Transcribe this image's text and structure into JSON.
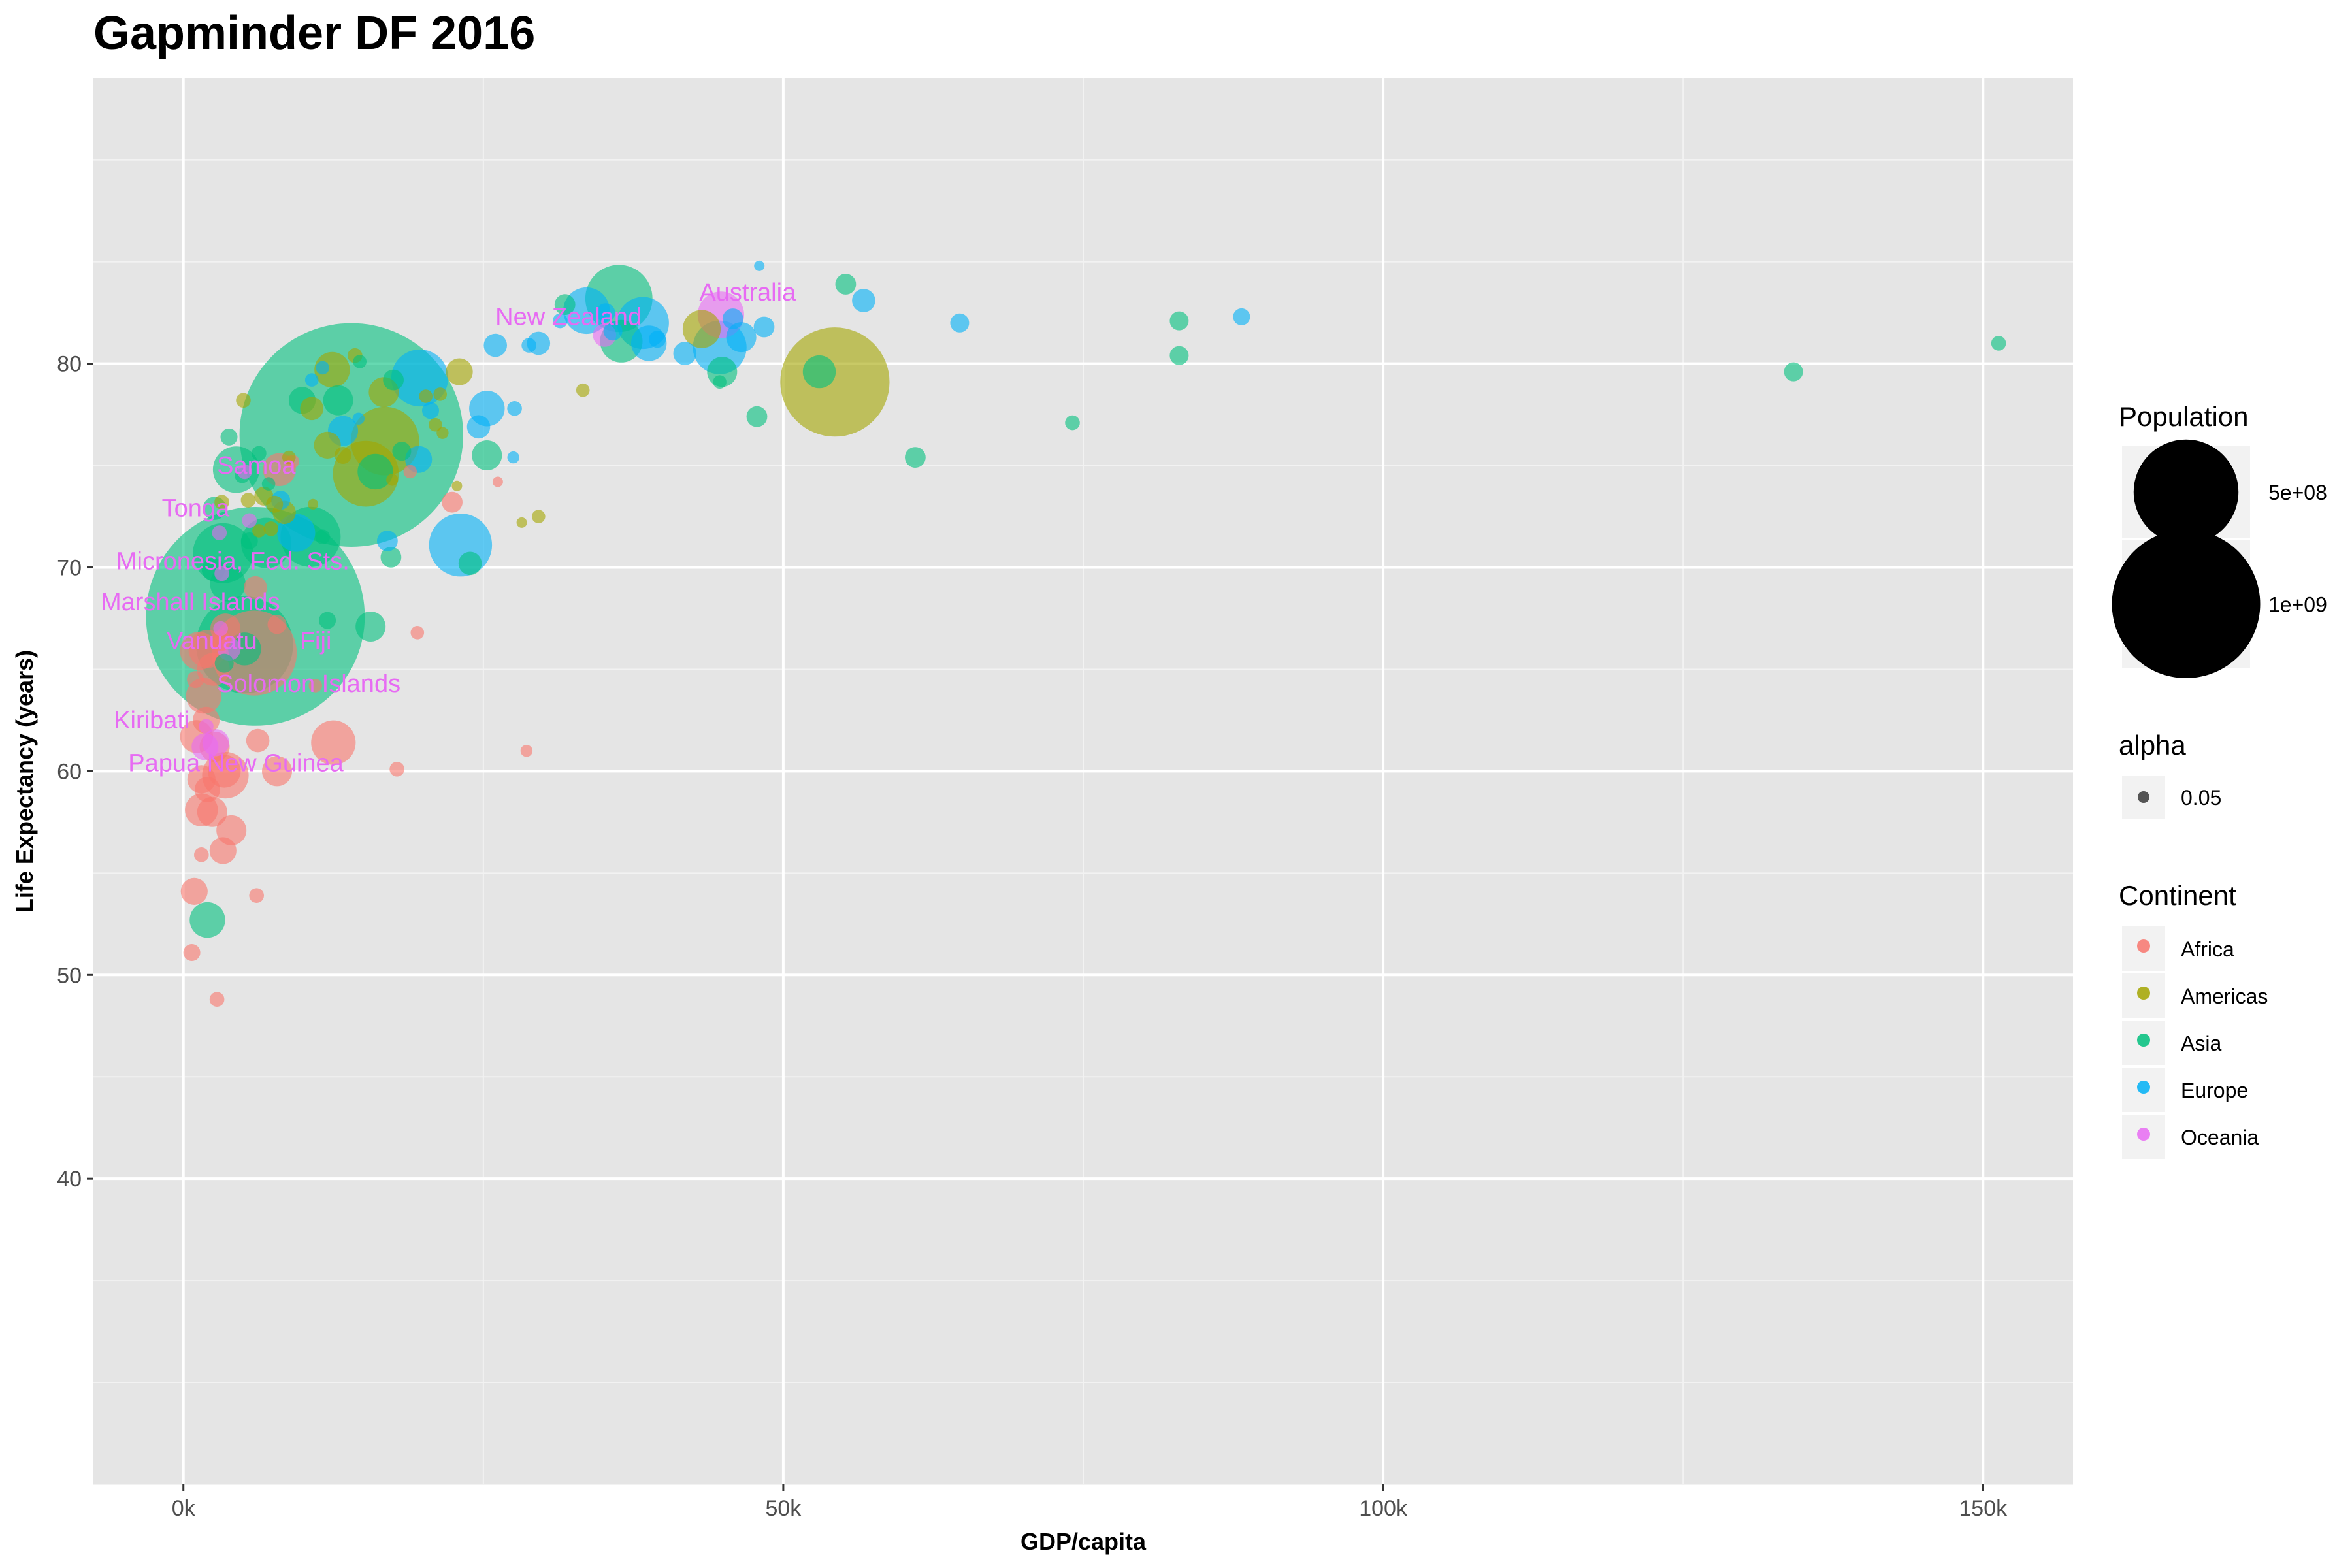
{
  "chart_data": {
    "type": "scatter",
    "title": "Gapminder DF 2016",
    "xlabel": "GDP/capita",
    "ylabel": "Life Expectancy (years)",
    "xlim": [
      -7500,
      157500
    ],
    "ylim": [
      25,
      94
    ],
    "x_ticks": [
      0,
      50000,
      100000,
      150000
    ],
    "x_tick_labels": [
      "0k",
      "50k",
      "100k",
      "150k"
    ],
    "y_ticks": [
      40,
      50,
      60,
      70,
      80
    ],
    "y_tick_labels": [
      "40",
      "50",
      "60",
      "70",
      "80"
    ],
    "grid": true,
    "background": "#e5e5e5",
    "point_alpha": 0.6,
    "colors": {
      "Africa": "#F8766D",
      "Americas": "#A3A500",
      "Asia": "#00BF7D",
      "Europe": "#00B0F6",
      "Oceania": "#E76BF3"
    },
    "legend": {
      "position": "right",
      "size": {
        "title": "Population",
        "entries": [
          {
            "label": "5e+08",
            "value": 500000000
          },
          {
            "label": "1e+09",
            "value": 1000000000
          }
        ]
      },
      "alpha": {
        "title": "alpha",
        "entries": [
          {
            "label": "0.05"
          }
        ]
      },
      "color": {
        "title": "Continent",
        "entries": [
          "Africa",
          "Americas",
          "Asia",
          "Europe",
          "Oceania"
        ]
      }
    },
    "series": [
      {
        "name": "Africa",
        "points": [
          [
            700,
            51.1,
            8
          ],
          [
            900,
            54.1,
            20
          ],
          [
            1300,
            65.9,
            40
          ],
          [
            1100,
            61.7,
            30
          ],
          [
            1500,
            58.1,
            30
          ],
          [
            2000,
            59.1,
            18
          ],
          [
            2400,
            58.0,
            25
          ],
          [
            3300,
            56.1,
            20
          ],
          [
            4000,
            57.1,
            25
          ],
          [
            1500,
            55.9,
            6
          ],
          [
            1900,
            62.5,
            20
          ],
          [
            2600,
            61.2,
            25
          ],
          [
            1700,
            63.7,
            35
          ],
          [
            3400,
            60.0,
            30
          ],
          [
            3500,
            59.8,
            60
          ],
          [
            1500,
            59.6,
            22
          ],
          [
            2800,
            48.8,
            6
          ],
          [
            6200,
            61.5,
            15
          ],
          [
            7800,
            60.0,
            25
          ],
          [
            12500,
            61.4,
            55
          ],
          [
            17800,
            60.1,
            6
          ],
          [
            28600,
            61.0,
            4
          ],
          [
            6100,
            53.9,
            6
          ],
          [
            19500,
            66.8,
            5
          ],
          [
            3500,
            67.0,
            25
          ],
          [
            6000,
            69.0,
            15
          ],
          [
            11000,
            64.2,
            5
          ],
          [
            2000,
            66.0,
            40
          ],
          [
            2500,
            65.0,
            30
          ],
          [
            1000,
            64.5,
            8
          ],
          [
            8000,
            74.8,
            30
          ],
          [
            22400,
            73.2,
            12
          ],
          [
            26200,
            74.2,
            3
          ],
          [
            18900,
            74.7,
            5
          ],
          [
            3100,
            66.4,
            12
          ],
          [
            9100,
            75.2,
            5
          ],
          [
            7800,
            67.2,
            10
          ],
          [
            5900,
            65.8,
            200
          ]
        ]
      },
      {
        "name": "Americas",
        "points": [
          [
            54300,
            79.1,
            330
          ],
          [
            43200,
            81.7,
            40
          ],
          [
            12400,
            79.7,
            35
          ],
          [
            14300,
            80.4,
            6
          ],
          [
            15200,
            74.6,
            120
          ],
          [
            16800,
            76.2,
            130
          ],
          [
            12000,
            76.0,
            20
          ],
          [
            23000,
            79.6,
            20
          ],
          [
            10700,
            77.8,
            15
          ],
          [
            7600,
            73.1,
            8
          ],
          [
            8400,
            72.7,
            15
          ],
          [
            5400,
            73.3,
            6
          ],
          [
            6700,
            73.5,
            10
          ],
          [
            3200,
            73.2,
            6
          ],
          [
            7300,
            71.9,
            6
          ],
          [
            5000,
            78.2,
            6
          ],
          [
            21400,
            78.5,
            5
          ],
          [
            20200,
            78.4,
            5
          ],
          [
            21000,
            77.0,
            5
          ],
          [
            29600,
            72.5,
            5
          ],
          [
            33300,
            78.7,
            5
          ],
          [
            21600,
            76.6,
            4
          ],
          [
            22800,
            74.0,
            3
          ],
          [
            28200,
            72.2,
            3
          ],
          [
            10800,
            73.1,
            3
          ],
          [
            13300,
            75.5,
            8
          ],
          [
            16700,
            78.6,
            25
          ],
          [
            17400,
            74.3,
            4
          ],
          [
            8800,
            75.4,
            5
          ],
          [
            6300,
            71.8,
            5
          ]
        ]
      },
      {
        "name": "Asia",
        "points": [
          [
            14000,
            76.5,
            1385
          ],
          [
            6000,
            67.6,
            1325
          ],
          [
            5100,
            66.2,
            260
          ],
          [
            10600,
            71.5,
            100
          ],
          [
            3300,
            70.7,
            100
          ],
          [
            6900,
            71.2,
            70
          ],
          [
            15600,
            67.1,
            25
          ],
          [
            9900,
            78.2,
            20
          ],
          [
            4400,
            74.8,
            60
          ],
          [
            16000,
            74.7,
            35
          ],
          [
            12900,
            78.2,
            25
          ],
          [
            25300,
            75.5,
            25
          ],
          [
            23900,
            70.2,
            15
          ],
          [
            18200,
            75.7,
            10
          ],
          [
            36300,
            83.2,
            125
          ],
          [
            36500,
            81.1,
            50
          ],
          [
            53000,
            79.6,
            30
          ],
          [
            44900,
            79.6,
            25
          ],
          [
            55200,
            83.9,
            12
          ],
          [
            61000,
            75.4,
            12
          ],
          [
            74100,
            77.1,
            6
          ],
          [
            83000,
            80.4,
            10
          ],
          [
            83000,
            82.1,
            10
          ],
          [
            134200,
            79.6,
            10
          ],
          [
            151300,
            81.0,
            6
          ],
          [
            47800,
            77.4,
            12
          ],
          [
            2000,
            52.7,
            35
          ],
          [
            3700,
            69.2,
            35
          ],
          [
            5100,
            66.0,
            30
          ],
          [
            2500,
            69.9,
            15
          ],
          [
            3400,
            65.3,
            10
          ],
          [
            6300,
            75.6,
            6
          ],
          [
            12000,
            67.4,
            8
          ],
          [
            17300,
            70.5,
            12
          ],
          [
            11600,
            71.5,
            6
          ],
          [
            4900,
            74.5,
            6
          ],
          [
            3800,
            76.4,
            8
          ],
          [
            5500,
            71.3,
            8
          ],
          [
            44700,
            79.1,
            5
          ],
          [
            31800,
            82.9,
            12
          ],
          [
            2600,
            72.9,
            15
          ],
          [
            7100,
            74.1,
            5
          ],
          [
            14700,
            80.1,
            5
          ],
          [
            17500,
            79.2,
            12
          ]
        ]
      },
      {
        "name": "Europe",
        "points": [
          [
            23100,
            71.1,
            110
          ],
          [
            19700,
            79.3,
            90
          ],
          [
            38300,
            82.0,
            75
          ],
          [
            33600,
            82.6,
            60
          ],
          [
            44700,
            80.8,
            80
          ],
          [
            48400,
            81.8,
            12
          ],
          [
            39500,
            81.2,
            8
          ],
          [
            35200,
            82.5,
            10
          ],
          [
            45800,
            82.2,
            12
          ],
          [
            46500,
            81.3,
            25
          ],
          [
            41800,
            80.5,
            15
          ],
          [
            38800,
            81.0,
            35
          ],
          [
            48000,
            84.8,
            3
          ],
          [
            64700,
            82.0,
            10
          ],
          [
            88200,
            82.3,
            8
          ],
          [
            56700,
            83.1,
            15
          ],
          [
            27500,
            75.4,
            4
          ],
          [
            29600,
            81.0,
            15
          ],
          [
            26000,
            80.9,
            15
          ],
          [
            25300,
            77.8,
            35
          ],
          [
            24600,
            76.9,
            15
          ],
          [
            19600,
            75.3,
            20
          ],
          [
            28800,
            80.9,
            6
          ],
          [
            13300,
            76.7,
            25
          ],
          [
            11600,
            79.8,
            5
          ],
          [
            17000,
            71.3,
            12
          ],
          [
            10700,
            79.2,
            5
          ],
          [
            9400,
            71.7,
            40
          ],
          [
            8100,
            73.3,
            10
          ],
          [
            14600,
            77.3,
            4
          ],
          [
            20600,
            77.7,
            8
          ],
          [
            31400,
            82.1,
            6
          ],
          [
            27600,
            77.8,
            6
          ],
          [
            35800,
            81.6,
            10
          ]
        ]
      },
      {
        "name": "Oceania",
        "points": [
          [
            44800,
            82.4,
            60
          ],
          [
            35100,
            81.4,
            15
          ],
          [
            3800,
            66.0,
            15
          ],
          [
            1800,
            61.2,
            20
          ],
          [
            2700,
            61.4,
            20
          ],
          [
            3000,
            71.7,
            6
          ],
          [
            5500,
            72.3,
            6
          ],
          [
            3200,
            69.7,
            6
          ],
          [
            5100,
            74.7,
            6
          ],
          [
            3100,
            67.0,
            6
          ],
          [
            1900,
            62.2,
            6
          ]
        ]
      }
    ],
    "annotations": [
      {
        "text": "Australia",
        "x": 43000,
        "y": 83.1
      },
      {
        "text": "New Zealand",
        "x": 26000,
        "y": 81.9
      },
      {
        "text": "Samoa",
        "x": 2800,
        "y": 74.6
      },
      {
        "text": "Tonga",
        "x": -1800,
        "y": 72.5
      },
      {
        "text": "Micronesia, Fed. Sts.",
        "x": -5600,
        "y": 69.9
      },
      {
        "text": "Marshall Islands",
        "x": -6900,
        "y": 67.9
      },
      {
        "text": "Vanuatu",
        "x": -1400,
        "y": 66.0
      },
      {
        "text": "Fiji",
        "x": 9700,
        "y": 66.0
      },
      {
        "text": "Solomon Islands",
        "x": 2800,
        "y": 63.9
      },
      {
        "text": "Kiribati",
        "x": -5800,
        "y": 62.1
      },
      {
        "text": "Papua New Guinea",
        "x": -4600,
        "y": 60.0
      }
    ]
  }
}
